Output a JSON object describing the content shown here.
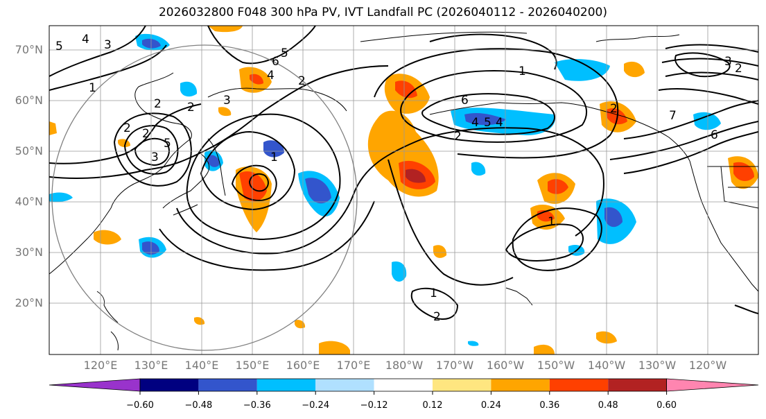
{
  "title": "2026032800 F048 300 hPa PV, IVT Landfall PC (2026040112 - 2026040200)",
  "lat_labels": [
    "70°N",
    "60°N",
    "50°N",
    "40°N",
    "30°N",
    "20°N"
  ],
  "lon_labels": [
    "120°E",
    "130°E",
    "140°E",
    "150°E",
    "160°E",
    "170°E",
    "180°W",
    "170°W",
    "160°W",
    "150°W",
    "140°W",
    "130°W",
    "120°W"
  ],
  "colorbar": {
    "colors": [
      "#9933cc",
      "#000080",
      "#3355cc",
      "#00bfff",
      "#b0e0ff",
      "#ffffff",
      "#ffe680",
      "#ffa500",
      "#ff4000",
      "#b22222",
      "#ff85b0"
    ],
    "tick_labels": [
      "−0.60",
      "−0.48",
      "−0.36",
      "−0.24",
      "−0.12",
      "0.12",
      "0.24",
      "0.36",
      "0.48",
      "0.60"
    ]
  },
  "contour_labels": [
    "5",
    "4",
    "3",
    "1",
    "2",
    "2",
    "5",
    "3",
    "2",
    "6",
    "2",
    "4",
    "3",
    "2",
    "1",
    "5",
    "4",
    "2",
    "6",
    "5",
    "4",
    "7",
    "6",
    "2",
    "1",
    "3",
    "2",
    "1",
    "2",
    "1"
  ]
}
